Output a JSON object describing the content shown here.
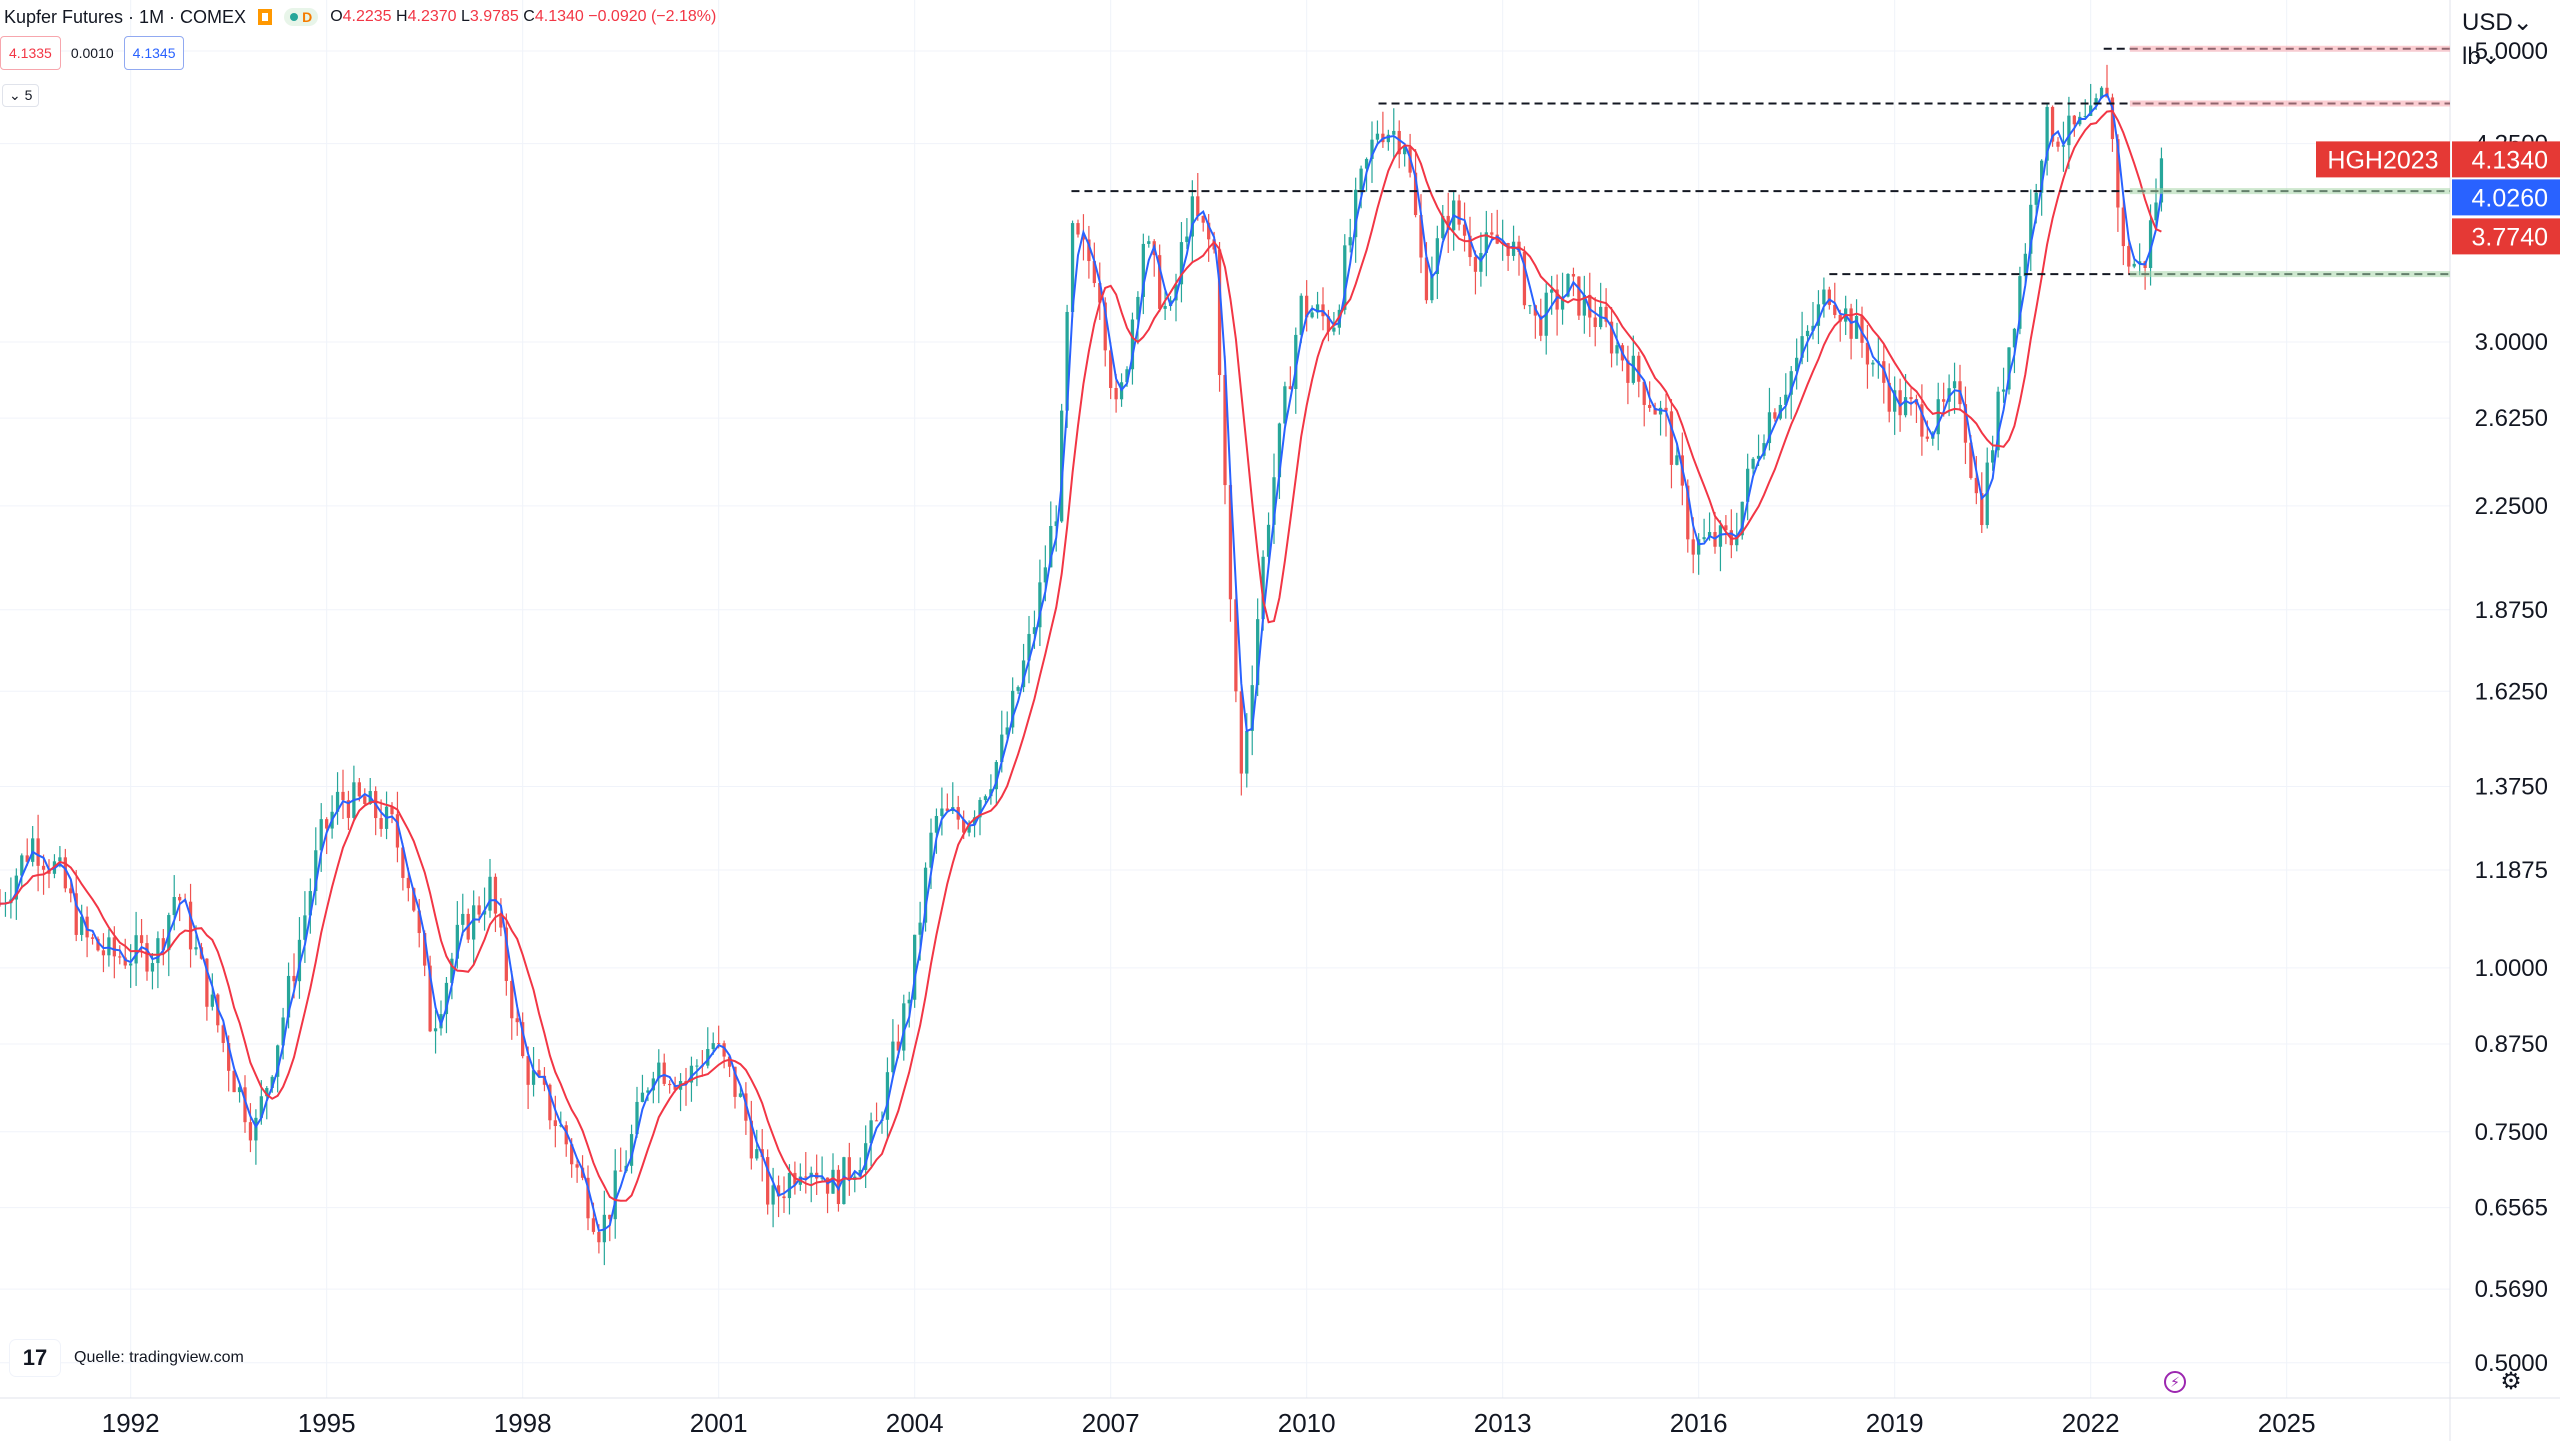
{
  "header": {
    "symbol_title": "Kupfer Futures · 1M · COMEX",
    "status_letter": "D",
    "ohlc": {
      "open": "4.2235",
      "high": "4.2370",
      "low": "3.9785",
      "close": "4.1340",
      "change": "−0.0920 (−2.18%)"
    },
    "ohlc_labels": {
      "open": "O",
      "high": "H",
      "low": "L",
      "close": "C"
    }
  },
  "trade": {
    "sell_price": "4.1335",
    "spread": "0.0010",
    "buy_price": "4.1345"
  },
  "indicator_toggle": "⌄ 5",
  "currency": {
    "unit_line1": "USD⌄",
    "unit_line2": "lb⌄"
  },
  "source_note": "Quelle: tradingview.com",
  "icons": {
    "logo": "tradingview-logo",
    "bolt": "lightning-icon",
    "gear": "settings-icon"
  },
  "colors": {
    "up": "#26a69a",
    "down": "#ef5350",
    "ma_fast": "#2962ff",
    "ma_slow": "#f23645",
    "label_red": "#e53935",
    "label_blue": "#2962ff",
    "grid": "#f0f3fa",
    "level_line": "#131722"
  },
  "chart_data": {
    "type": "candlestick",
    "title": "Kupfer Futures",
    "interval": "1M",
    "exchange": "COMEX",
    "y_scale": "log",
    "ylim": [
      0.47,
      5.28
    ],
    "xlim": [
      1990.0,
      2027.5
    ],
    "grid": true,
    "y_ticks": [
      "5.0000",
      "4.2500",
      "3.0000",
      "2.6250",
      "2.2500",
      "1.8750",
      "1.6250",
      "1.3750",
      "1.1875",
      "1.0000",
      "0.8750",
      "0.7500",
      "0.6565",
      "0.5690",
      "0.5000"
    ],
    "x_ticks": [
      "1992",
      "1995",
      "1998",
      "2001",
      "2004",
      "2007",
      "2010",
      "2013",
      "2016",
      "2019",
      "2022",
      "2025"
    ],
    "series_anchors": [
      {
        "x": 1990.0,
        "y": 1.12
      },
      {
        "x": 1990.5,
        "y": 1.25
      },
      {
        "x": 1990.9,
        "y": 1.18
      },
      {
        "x": 1991.3,
        "y": 1.05
      },
      {
        "x": 1991.7,
        "y": 1.02
      },
      {
        "x": 1992.4,
        "y": 1.03
      },
      {
        "x": 1992.7,
        "y": 1.15
      },
      {
        "x": 1993.2,
        "y": 0.95
      },
      {
        "x": 1993.6,
        "y": 0.82
      },
      {
        "x": 1993.9,
        "y": 0.75
      },
      {
        "x": 1994.4,
        "y": 0.95
      },
      {
        "x": 1994.9,
        "y": 1.25
      },
      {
        "x": 1995.2,
        "y": 1.35
      },
      {
        "x": 1995.6,
        "y": 1.33
      },
      {
        "x": 1996.0,
        "y": 1.28
      },
      {
        "x": 1996.3,
        "y": 1.15
      },
      {
        "x": 1996.6,
        "y": 0.9
      },
      {
        "x": 1997.0,
        "y": 1.05
      },
      {
        "x": 1997.5,
        "y": 1.15
      },
      {
        "x": 1998.0,
        "y": 0.85
      },
      {
        "x": 1998.6,
        "y": 0.75
      },
      {
        "x": 1999.2,
        "y": 0.63
      },
      {
        "x": 1999.6,
        "y": 0.72
      },
      {
        "x": 2000.0,
        "y": 0.85
      },
      {
        "x": 2000.5,
        "y": 0.82
      },
      {
        "x": 2000.9,
        "y": 0.88
      },
      {
        "x": 2001.3,
        "y": 0.8
      },
      {
        "x": 2001.8,
        "y": 0.66
      },
      {
        "x": 2002.3,
        "y": 0.72
      },
      {
        "x": 2002.8,
        "y": 0.68
      },
      {
        "x": 2003.4,
        "y": 0.75
      },
      {
        "x": 2003.9,
        "y": 0.95
      },
      {
        "x": 2004.3,
        "y": 1.3
      },
      {
        "x": 2004.8,
        "y": 1.3
      },
      {
        "x": 2005.3,
        "y": 1.45
      },
      {
        "x": 2005.8,
        "y": 1.8
      },
      {
        "x": 2006.2,
        "y": 2.3
      },
      {
        "x": 2006.4,
        "y": 3.6
      },
      {
        "x": 2006.8,
        "y": 3.4
      },
      {
        "x": 2007.1,
        "y": 2.6
      },
      {
        "x": 2007.5,
        "y": 3.6
      },
      {
        "x": 2007.9,
        "y": 3.1
      },
      {
        "x": 2008.2,
        "y": 3.8
      },
      {
        "x": 2008.6,
        "y": 3.5
      },
      {
        "x": 2008.8,
        "y": 2.0
      },
      {
        "x": 2009.0,
        "y": 1.4
      },
      {
        "x": 2009.4,
        "y": 2.2
      },
      {
        "x": 2009.9,
        "y": 3.2
      },
      {
        "x": 2010.4,
        "y": 3.1
      },
      {
        "x": 2010.8,
        "y": 3.9
      },
      {
        "x": 2011.1,
        "y": 4.4
      },
      {
        "x": 2011.5,
        "y": 4.3
      },
      {
        "x": 2011.8,
        "y": 3.3
      },
      {
        "x": 2012.2,
        "y": 3.8
      },
      {
        "x": 2012.6,
        "y": 3.5
      },
      {
        "x": 2013.1,
        "y": 3.6
      },
      {
        "x": 2013.5,
        "y": 3.1
      },
      {
        "x": 2014.0,
        "y": 3.3
      },
      {
        "x": 2014.5,
        "y": 3.1
      },
      {
        "x": 2014.9,
        "y": 2.9
      },
      {
        "x": 2015.5,
        "y": 2.6
      },
      {
        "x": 2015.9,
        "y": 2.1
      },
      {
        "x": 2016.5,
        "y": 2.12
      },
      {
        "x": 2017.0,
        "y": 2.6
      },
      {
        "x": 2017.5,
        "y": 2.9
      },
      {
        "x": 2018.0,
        "y": 3.3
      },
      {
        "x": 2018.5,
        "y": 3.0
      },
      {
        "x": 2019.0,
        "y": 2.7
      },
      {
        "x": 2019.6,
        "y": 2.6
      },
      {
        "x": 2020.0,
        "y": 2.75
      },
      {
        "x": 2020.3,
        "y": 2.2
      },
      {
        "x": 2020.8,
        "y": 3.1
      },
      {
        "x": 2021.3,
        "y": 4.4
      },
      {
        "x": 2021.6,
        "y": 4.3
      },
      {
        "x": 2022.0,
        "y": 4.4
      },
      {
        "x": 2022.25,
        "y": 4.7
      },
      {
        "x": 2022.5,
        "y": 3.5
      },
      {
        "x": 2022.8,
        "y": 3.4
      },
      {
        "x": 2023.1,
        "y": 4.13
      }
    ],
    "levels": [
      {
        "x_start": 2022.2,
        "x_end": 2027.5,
        "y": 5.02,
        "style": "dashed",
        "zone": "red"
      },
      {
        "x_start": 2011.1,
        "x_end": 2027.5,
        "y": 4.56,
        "style": "dashed",
        "zone": "red"
      },
      {
        "x_start": 2006.4,
        "x_end": 2027.5,
        "y": 3.91,
        "style": "dashed",
        "zone": "green"
      },
      {
        "x_start": 2018.0,
        "x_end": 2027.5,
        "y": 3.38,
        "style": "dashed",
        "zone": "green"
      }
    ],
    "price_labels": [
      {
        "text": "HGH2023",
        "value": "4.1340",
        "color": "#e53935"
      },
      {
        "text": "",
        "value": "4.0260",
        "color": "#2962ff"
      },
      {
        "text": "",
        "value": "3.7740",
        "color": "#e53935"
      }
    ],
    "moving_averages": [
      {
        "period": "fast",
        "color": "#2962ff"
      },
      {
        "period": "slow",
        "color": "#f23645"
      }
    ]
  }
}
